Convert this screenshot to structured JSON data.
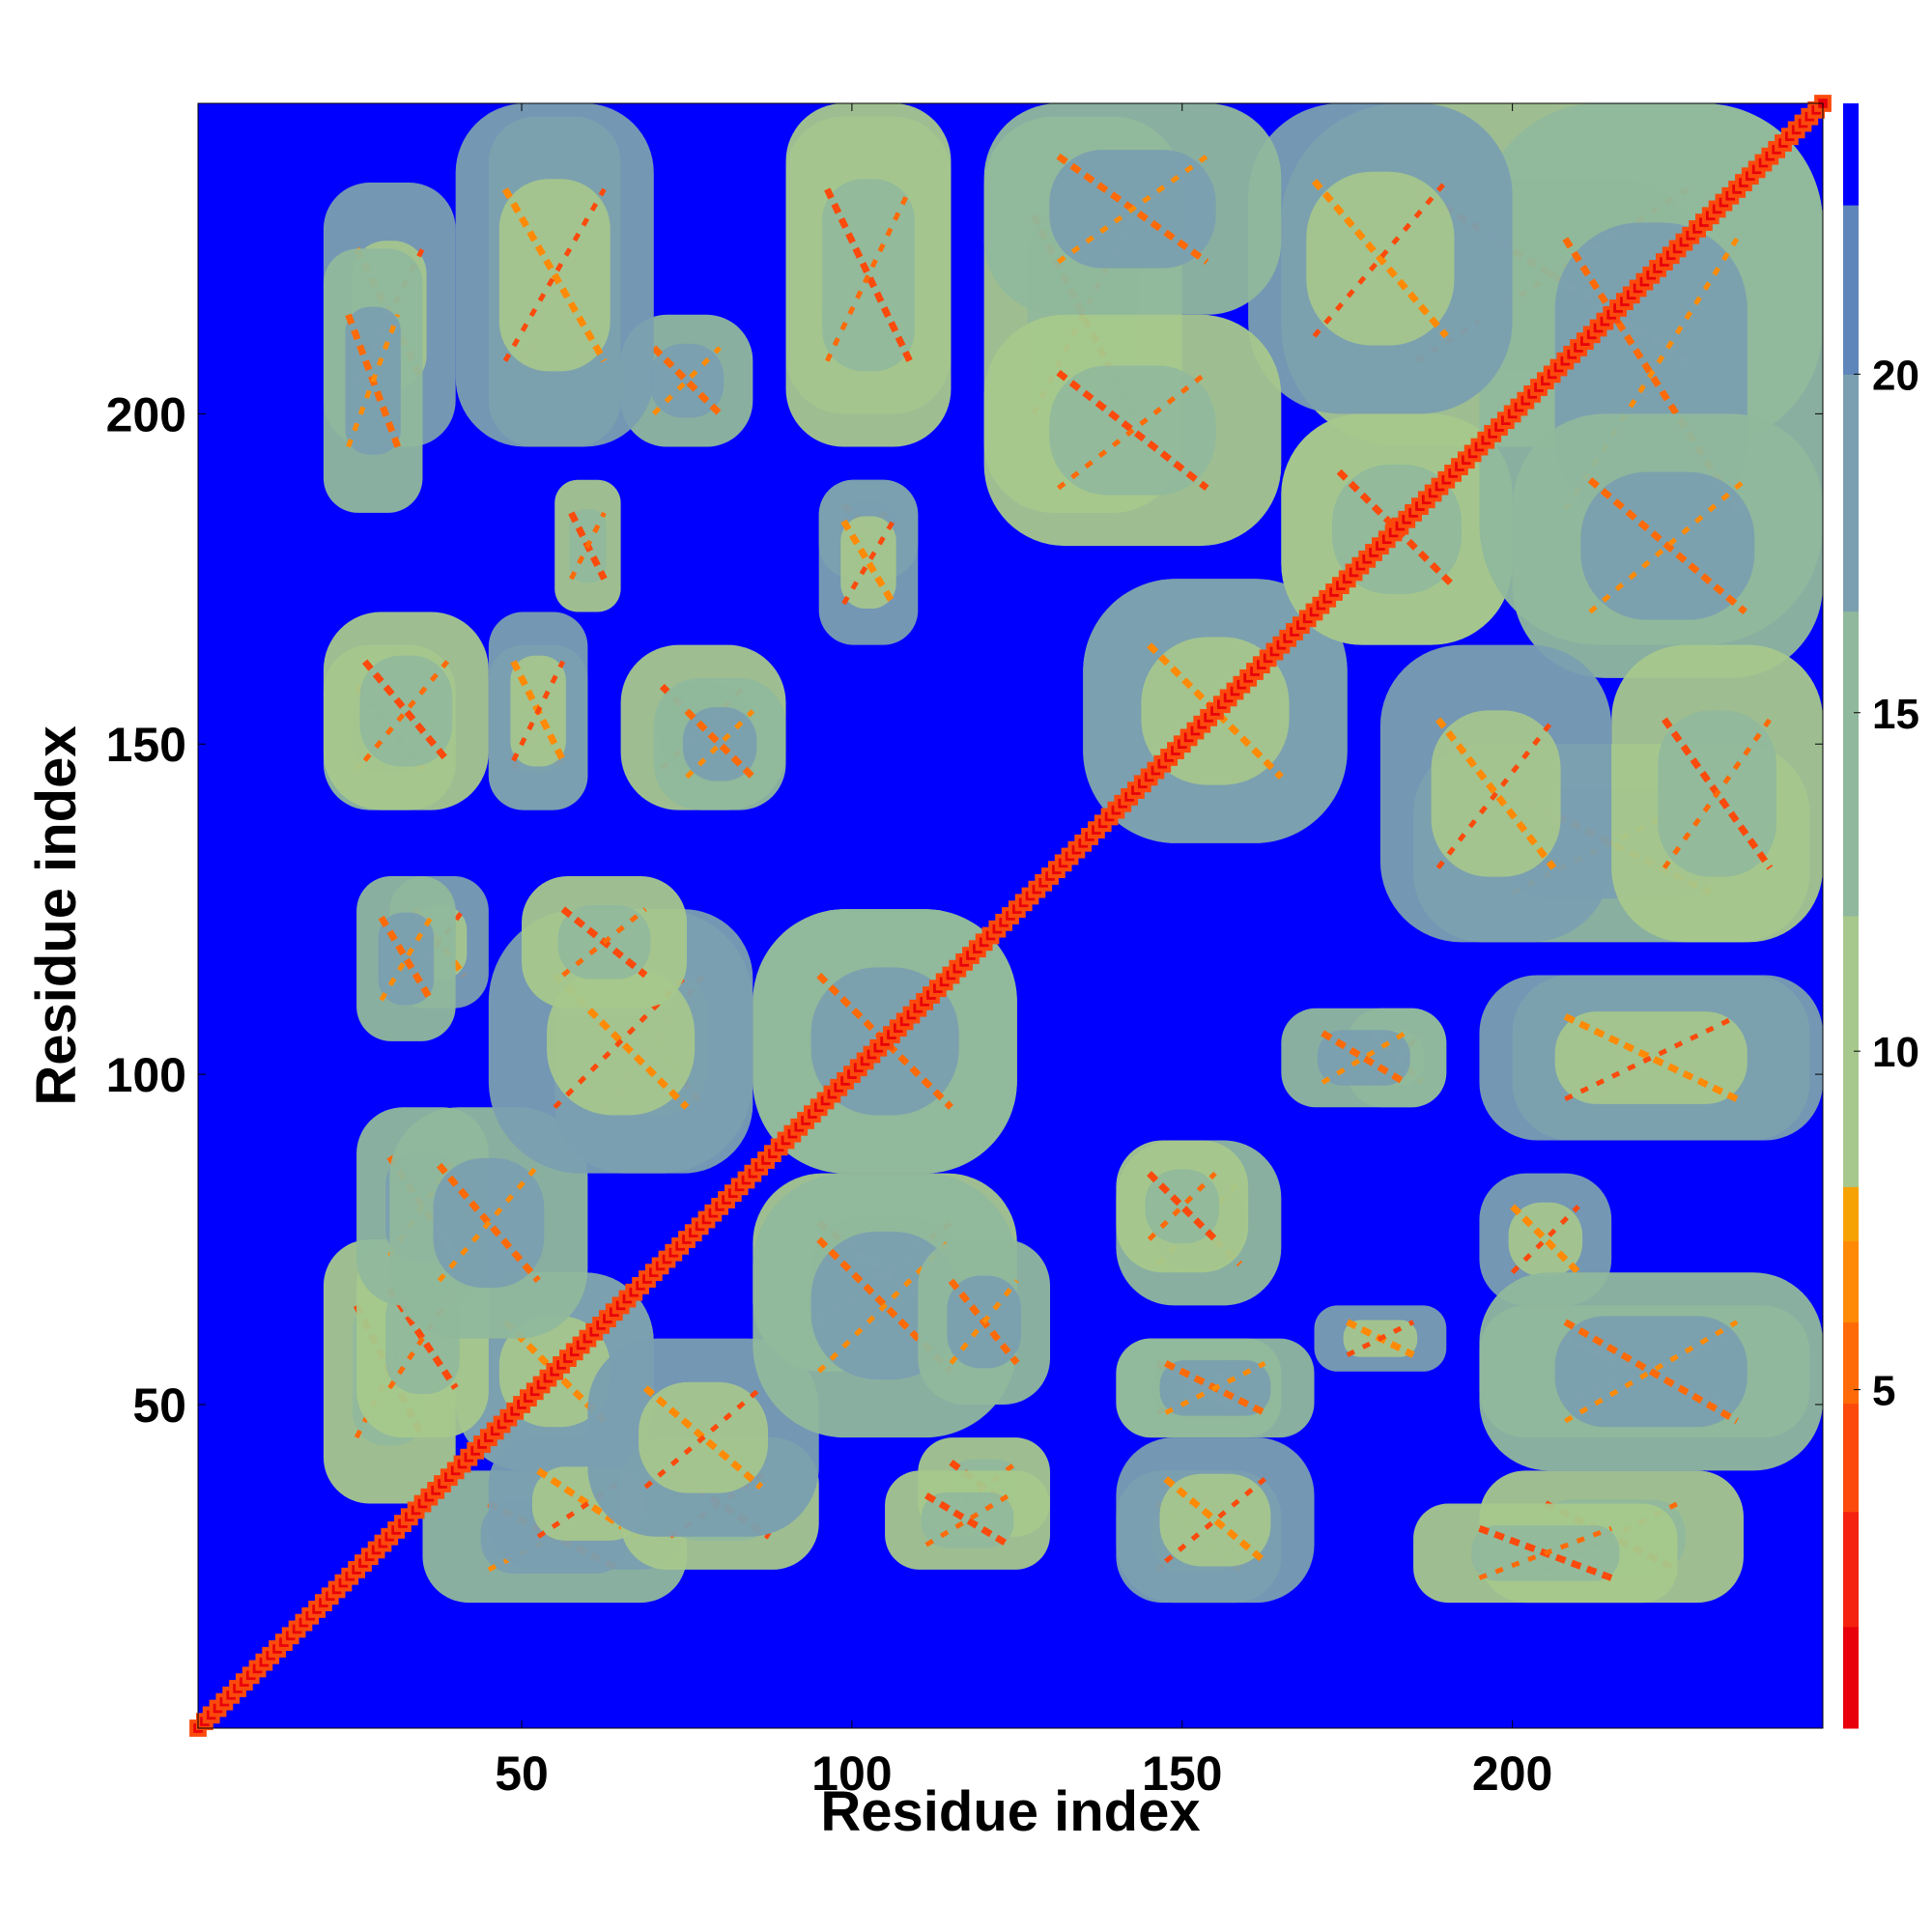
{
  "chart_data": {
    "type": "heatmap",
    "title": "",
    "xlabel": "Residue index",
    "ylabel": "Residue index",
    "xlim": [
      1,
      247
    ],
    "ylim": [
      1,
      247
    ],
    "x_ticks": [
      50,
      100,
      150,
      200
    ],
    "y_ticks": [
      50,
      100,
      150,
      200
    ],
    "x_tick_labels": [
      "50",
      "100",
      "150",
      "200"
    ],
    "y_tick_labels": [
      "50",
      "100",
      "150",
      "200"
    ],
    "n_residues": 247,
    "grid": false,
    "legend": "colorbar-right",
    "colorbar": {
      "range": [
        0,
        24
      ],
      "ticks": [
        5,
        10,
        15,
        20
      ],
      "tick_labels": [
        "5",
        "10",
        "15",
        "20"
      ],
      "bands": [
        {
          "from": 0,
          "to": 1.5,
          "color": "#e8000b"
        },
        {
          "from": 1.5,
          "to": 3.2,
          "color": "#f4220f"
        },
        {
          "from": 3.2,
          "to": 4.8,
          "color": "#fb4a0c"
        },
        {
          "from": 4.8,
          "to": 6.0,
          "color": "#fe6a08"
        },
        {
          "from": 6.0,
          "to": 7.2,
          "color": "#ff8a06"
        },
        {
          "from": 7.2,
          "to": 8.0,
          "color": "#f7a204"
        },
        {
          "from": 8.0,
          "to": 12.0,
          "color": "#a7c88c"
        },
        {
          "from": 12.0,
          "to": 16.5,
          "color": "#90b89c"
        },
        {
          "from": 16.5,
          "to": 20.0,
          "color": "#7a9fb0"
        },
        {
          "from": 20.0,
          "to": 22.5,
          "color": "#5f86ba"
        },
        {
          "from": 22.5,
          "to": 24.0,
          "color": "#0000ff"
        }
      ]
    },
    "background_color": "#0000ff",
    "diagonal_color": "#e8000b",
    "contact_regions": [
      {
        "x": [
          20,
          40
        ],
        "y": [
          35,
          75
        ],
        "level": "mid"
      },
      {
        "x": [
          40,
          70
        ],
        "y": [
          40,
          70
        ],
        "level": "mid"
      },
      {
        "x": [
          45,
          75
        ],
        "y": [
          25,
          45
        ],
        "level": "mid"
      },
      {
        "x": [
          65,
          95
        ],
        "y": [
          25,
          45
        ],
        "level": "mid"
      },
      {
        "x": [
          30,
          60
        ],
        "y": [
          60,
          95
        ],
        "level": "mid"
      },
      {
        "x": [
          55,
          85
        ],
        "y": [
          85,
          125
        ],
        "level": "mid"
      },
      {
        "x": [
          85,
          125
        ],
        "y": [
          85,
          125
        ],
        "level": "mid"
      },
      {
        "x": [
          85,
          125
        ],
        "y": [
          45,
          85
        ],
        "level": "mid"
      },
      {
        "x": [
          30,
          45
        ],
        "y": [
          110,
          130
        ],
        "level": "mid"
      },
      {
        "x": [
          50,
          75
        ],
        "y": [
          110,
          130
        ],
        "level": "mid"
      },
      {
        "x": [
          20,
          40
        ],
        "y": [
          140,
          165
        ],
        "level": "mid"
      },
      {
        "x": [
          45,
          60
        ],
        "y": [
          140,
          165
        ],
        "level": "mid"
      },
      {
        "x": [
          65,
          90
        ],
        "y": [
          140,
          165
        ],
        "level": "mid"
      },
      {
        "x": [
          95,
          110
        ],
        "y": [
          175,
          190
        ],
        "level": "mid"
      },
      {
        "x": [
          20,
          40
        ],
        "y": [
          195,
          235
        ],
        "level": "mid"
      },
      {
        "x": [
          45,
          65
        ],
        "y": [
          195,
          245
        ],
        "level": "mid"
      },
      {
        "x": [
          65,
          85
        ],
        "y": [
          195,
          215
        ],
        "level": "mid"
      },
      {
        "x": [
          90,
          115
        ],
        "y": [
          200,
          245
        ],
        "level": "mid"
      },
      {
        "x": [
          120,
          150
        ],
        "y": [
          185,
          245
        ],
        "level": "mid"
      },
      {
        "x": [
          135,
          175
        ],
        "y": [
          135,
          175
        ],
        "level": "mid"
      },
      {
        "x": [
          165,
          200
        ],
        "y": [
          165,
          200
        ],
        "level": "mid"
      },
      {
        "x": [
          165,
          247
        ],
        "y": [
          195,
          247
        ],
        "level": "mid"
      },
      {
        "x": [
          200,
          247
        ],
        "y": [
          160,
          200
        ],
        "level": "mid"
      },
      {
        "x": [
          180,
          215
        ],
        "y": [
          120,
          165
        ],
        "level": "mid"
      },
      {
        "x": [
          215,
          247
        ],
        "y": [
          120,
          165
        ],
        "level": "mid"
      },
      {
        "x": [
          165,
          190
        ],
        "y": [
          95,
          110
        ],
        "level": "mid"
      },
      {
        "x": [
          195,
          247
        ],
        "y": [
          90,
          115
        ],
        "level": "mid"
      },
      {
        "x": [
          140,
          160
        ],
        "y": [
          70,
          90
        ],
        "level": "mid"
      },
      {
        "x": [
          140,
          170
        ],
        "y": [
          45,
          60
        ],
        "level": "mid"
      },
      {
        "x": [
          140,
          170
        ],
        "y": [
          20,
          45
        ],
        "level": "mid"
      },
      {
        "x": [
          185,
          225
        ],
        "y": [
          20,
          35
        ],
        "level": "mid"
      },
      {
        "x": [
          195,
          247
        ],
        "y": [
          40,
          70
        ],
        "level": "mid"
      },
      {
        "x": [
          170,
          190
        ],
        "y": [
          55,
          65
        ],
        "level": "mid"
      },
      {
        "x": [
          105,
          130
        ],
        "y": [
          25,
          40
        ],
        "level": "mid"
      }
    ]
  }
}
